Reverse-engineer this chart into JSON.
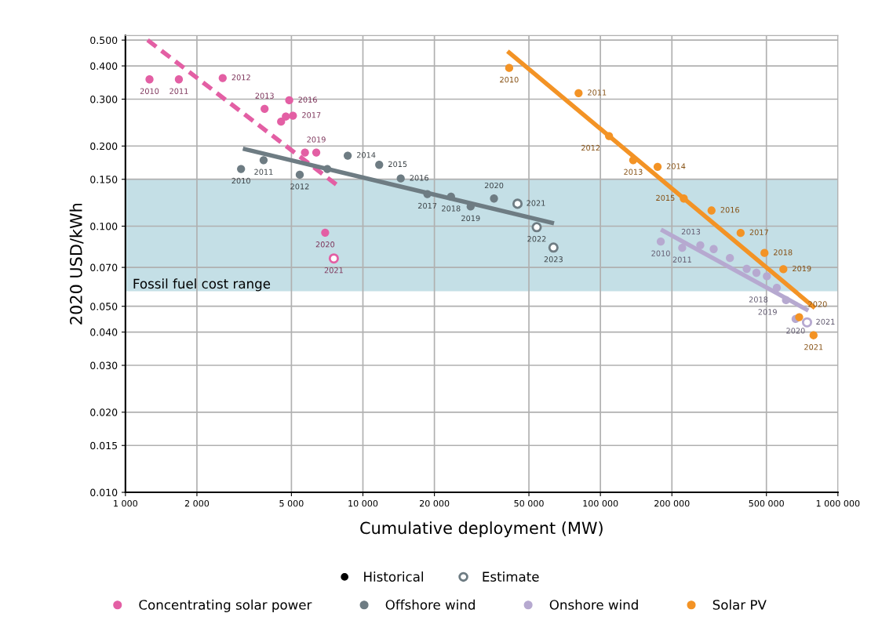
{
  "chart_data": {
    "type": "scatter",
    "xlabel": "Cumulative deployment (MW)",
    "ylabel": "2020 USD/kWh",
    "log": "xy",
    "grid": true,
    "legend": "bottom",
    "marker": "circle",
    "xlim": [
      1000,
      1000000
    ],
    "ylim": [
      0.01,
      0.52
    ],
    "xticks": [
      {
        "value": 1000,
        "label": "1 000"
      },
      {
        "value": 2000,
        "label": "2 000"
      },
      {
        "value": 5000,
        "label": "5 000"
      },
      {
        "value": 10000,
        "label": "10 000"
      },
      {
        "value": 20000,
        "label": "20 000"
      },
      {
        "value": 50000,
        "label": "50 000"
      },
      {
        "value": 100000,
        "label": "100 000"
      },
      {
        "value": 200000,
        "label": "200 000"
      },
      {
        "value": 500000,
        "label": "500 000"
      },
      {
        "value": 1000000,
        "label": "1 000 000"
      }
    ],
    "yticks": [
      {
        "value": 0.01,
        "label": "0.010"
      },
      {
        "value": 0.015,
        "label": "0.015"
      },
      {
        "value": 0.02,
        "label": "0.020"
      },
      {
        "value": 0.03,
        "label": "0.030"
      },
      {
        "value": 0.04,
        "label": "0.040"
      },
      {
        "value": 0.05,
        "label": "0.050"
      },
      {
        "value": 0.07,
        "label": "0.070"
      },
      {
        "value": 0.1,
        "label": "0.100"
      },
      {
        "value": 0.15,
        "label": "0.150"
      },
      {
        "value": 0.2,
        "label": "0.200"
      },
      {
        "value": 0.3,
        "label": "0.300"
      },
      {
        "value": 0.4,
        "label": "0.400"
      },
      {
        "value": 0.5,
        "label": "0.500"
      }
    ],
    "bands": [
      {
        "axis": "y",
        "from": 0.057,
        "to": 0.15,
        "label": "Fossil fuel cost range",
        "color": "#c4dfe6"
      }
    ],
    "annotations": [
      "Historical",
      {
        "text": "2010",
        "x": 1263,
        "y": 0.356
      },
      {
        "text": "2011",
        "x": 1679,
        "y": 0.356
      },
      {
        "text": "2012",
        "x": 2568,
        "y": 0.36
      },
      {
        "text": "2013",
        "x": 3855,
        "y": 0.276
      },
      {
        "text": "2016",
        "x": 4895,
        "y": 0.297
      },
      {
        "text": "2017",
        "x": 5074,
        "y": 0.26
      },
      {
        "text": "2019",
        "x": 6362,
        "y": 0.189
      },
      {
        "text": "2020",
        "x": 6935,
        "y": 0.0945
      },
      {
        "text": "2021",
        "x": 7542,
        "y": 0.0756
      },
      {
        "text": "2010",
        "x": 3068,
        "y": 0.164
      },
      {
        "text": "2011",
        "x": 3818,
        "y": 0.177
      },
      {
        "text": "2012",
        "x": 5420,
        "y": 0.156
      },
      {
        "text": "2014",
        "x": 8630,
        "y": 0.184
      },
      {
        "text": "2015",
        "x": 11710,
        "y": 0.17
      },
      {
        "text": "2016",
        "x": 14430,
        "y": 0.151
      },
      {
        "text": "2017",
        "x": 18680,
        "y": 0.132
      },
      {
        "text": "2018",
        "x": 23500,
        "y": 0.129
      },
      {
        "text": "2019",
        "x": 28420,
        "y": 0.1185
      },
      {
        "text": "2020",
        "x": 35640,
        "y": 0.127
      },
      {
        "text": "2021",
        "x": 44770,
        "y": 0.1214
      },
      {
        "text": "2022",
        "x": 53930,
        "y": 0.0991
      },
      {
        "text": "2023",
        "x": 63430,
        "y": 0.0831
      },
      {
        "text": "2010",
        "x": 179500,
        "y": 0.0875
      },
      {
        "text": "2011",
        "x": 221000,
        "y": 0.0829
      },
      {
        "text": "2013",
        "x": 299900,
        "y": 0.082
      },
      {
        "text": "2018",
        "x": 553200,
        "y": 0.0587
      },
      {
        "text": "2019",
        "x": 604600,
        "y": 0.0527
      },
      {
        "text": "2020",
        "x": 663600,
        "y": 0.0448
      },
      {
        "text": "2021",
        "x": 741400,
        "y": 0.0435
      },
      {
        "text": "2010",
        "x": 41290,
        "y": 0.393
      },
      {
        "text": "2011",
        "x": 80930,
        "y": 0.316
      },
      {
        "text": "2012",
        "x": 108750,
        "y": 0.218
      },
      {
        "text": "2013",
        "x": 137400,
        "y": 0.177
      },
      {
        "text": "2014",
        "x": 174100,
        "y": 0.167
      },
      {
        "text": "2015",
        "x": 224400,
        "y": 0.127
      },
      {
        "text": "2016",
        "x": 293700,
        "y": 0.1145
      },
      {
        "text": "2017",
        "x": 389400,
        "y": 0.0943
      },
      {
        "text": "2018",
        "x": 490800,
        "y": 0.0793
      },
      {
        "text": "2019",
        "x": 589300,
        "y": 0.0689
      },
      {
        "text": "2020",
        "x": 687000,
        "y": 0.0455
      },
      {
        "text": "2021",
        "x": 789700,
        "y": 0.0389
      }
    ],
    "series": [
      {
        "name": "Concentrating solar power",
        "color": "#e35fa4",
        "x": [
          1263,
          1679,
          2568,
          3855,
          4524,
          4737,
          4895,
          5074,
          5702,
          6362,
          6935
        ],
        "values": [
          0.356,
          0.356,
          0.36,
          0.276,
          0.247,
          0.258,
          0.297,
          0.26,
          0.189,
          0.189,
          0.0945
        ]
      },
      {
        "name": "Offshore wind",
        "color": "#6e7c83",
        "x": [
          3068,
          3818,
          5420,
          7080,
          8630,
          11710,
          14430,
          18680,
          23500,
          28420,
          35640
        ],
        "values": [
          0.164,
          0.177,
          0.156,
          0.164,
          0.184,
          0.17,
          0.151,
          0.132,
          0.129,
          0.1185,
          0.127
        ]
      },
      {
        "name": "Onshore wind",
        "color": "#b6a9d0",
        "x": [
          179500,
          221000,
          263400,
          299900,
          351000,
          413000,
          453900,
          502300,
          553200,
          604600,
          663600
        ],
        "values": [
          0.0875,
          0.0829,
          0.0848,
          0.082,
          0.0759,
          0.0691,
          0.0668,
          0.0648,
          0.0587,
          0.0527,
          0.0448
        ]
      },
      {
        "name": "Solar PV",
        "color": "#f39325",
        "x": [
          41290,
          80930,
          108750,
          137400,
          174100,
          224400,
          293700,
          389400,
          490800,
          589300,
          687000,
          789700
        ],
        "values": [
          0.393,
          0.316,
          0.218,
          0.177,
          0.167,
          0.127,
          0.1145,
          0.0943,
          0.0793,
          0.0689,
          0.0455,
          0.0389
        ]
      },
      {
        "name": "Estimate",
        "colors": [
          "#e35fa4",
          "#6e7c83",
          "#6e7c83",
          "#6e7c83",
          "#b6a9d0"
        ],
        "x": [
          7542,
          44770,
          53930,
          63430,
          741400
        ],
        "values": [
          0.0756,
          0.1214,
          0.0991,
          0.0831,
          0.0435
        ]
      },
      {
        "type": "line",
        "marker": "none",
        "color": "#e35fa4",
        "line_style": "dashed",
        "x": [
          1240,
          7834
        ],
        "values": [
          0.5,
          0.142
        ]
      },
      {
        "type": "line",
        "marker": "none",
        "color": "#6e7c83",
        "x": [
          3123,
          63770
        ],
        "values": [
          0.1955,
          0.1025
        ]
      },
      {
        "type": "line",
        "marker": "none",
        "color": "#b6a9d0",
        "x": [
          179900,
          750800
        ],
        "values": [
          0.0971,
          0.0482
        ]
      },
      {
        "type": "line",
        "marker": "none",
        "color": "#f39325",
        "x": [
          40640,
          799800
        ],
        "values": [
          0.454,
          0.0493
        ]
      }
    ]
  }
}
